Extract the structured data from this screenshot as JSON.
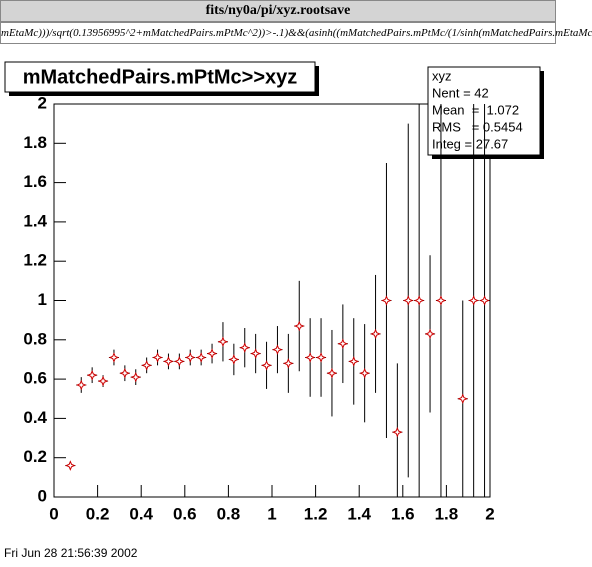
{
  "window": {
    "title": "fits/ny0a/pi/xyz.rootsave",
    "command": "mEtaMc)))/sqrt(0.13956995^2+mMatchedPairs.mPtMc^2))>-.1)&&(asinh((mMatchedPairs.mPtMc/(1/sinh(mMatchedPairs.mEtaMc"
  },
  "chart_data": {
    "type": "errorbar",
    "title": "mMatchedPairs.mPtMc>>xyz",
    "x": [
      0.075,
      0.125,
      0.175,
      0.225,
      0.275,
      0.325,
      0.375,
      0.425,
      0.475,
      0.525,
      0.575,
      0.625,
      0.675,
      0.725,
      0.775,
      0.825,
      0.875,
      0.925,
      0.975,
      1.025,
      1.075,
      1.125,
      1.175,
      1.225,
      1.275,
      1.325,
      1.375,
      1.425,
      1.475,
      1.525,
      1.575,
      1.625,
      1.675,
      1.725,
      1.775,
      1.875,
      1.925,
      1.975
    ],
    "values": [
      0.16,
      0.57,
      0.62,
      0.59,
      0.71,
      0.63,
      0.61,
      0.67,
      0.71,
      0.69,
      0.69,
      0.71,
      0.71,
      0.73,
      0.79,
      0.7,
      0.76,
      0.73,
      0.67,
      0.75,
      0.68,
      0.87,
      0.71,
      0.71,
      0.63,
      0.78,
      0.69,
      0.63,
      0.83,
      1.0,
      0.33,
      1.0,
      1.0,
      0.83,
      1.0,
      0.5,
      1.0,
      1.0
    ],
    "errors": [
      0.02,
      0.04,
      0.04,
      0.03,
      0.04,
      0.04,
      0.04,
      0.04,
      0.04,
      0.04,
      0.04,
      0.04,
      0.04,
      0.05,
      0.1,
      0.08,
      0.1,
      0.1,
      0.12,
      0.12,
      0.15,
      0.23,
      0.2,
      0.2,
      0.22,
      0.2,
      0.22,
      0.25,
      0.3,
      0.7,
      0.35,
      0.9,
      1.0,
      0.4,
      1.0,
      0.5,
      1.0,
      1.0
    ],
    "marker_color": "#cc0000",
    "bar_color": "#000000",
    "xlim": [
      0,
      2
    ],
    "ylim": [
      0,
      2
    ],
    "xticks": [
      0,
      0.2,
      0.4,
      0.6,
      0.8,
      1,
      1.2,
      1.4,
      1.6,
      1.8,
      2
    ],
    "yticks": [
      0,
      0.2,
      0.4,
      0.6,
      0.8,
      1,
      1.2,
      1.4,
      1.6,
      1.8,
      2
    ],
    "stats": {
      "name": "xyz",
      "lines": [
        "Nent = 42",
        "Mean  =  1.072",
        "RMS   = 0.5454",
        "Integ = 27.67"
      ]
    }
  },
  "footer": {
    "date": "Fri Jun 28 21:56:39 2002"
  }
}
